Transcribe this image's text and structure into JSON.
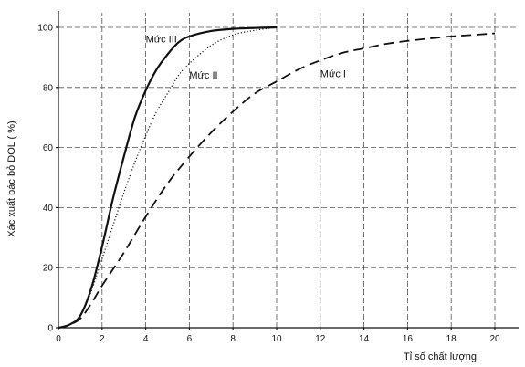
{
  "chart_data": {
    "type": "line",
    "title": "",
    "xlabel": "Tỉ số chất lượng",
    "ylabel": "Xác xuất bác bỏ DOL ( %)",
    "xlim": [
      0,
      20
    ],
    "ylim": [
      0,
      100
    ],
    "x_ticks": [
      0,
      2,
      4,
      6,
      8,
      10,
      12,
      14,
      16,
      18,
      20
    ],
    "y_ticks": [
      0,
      20,
      40,
      60,
      80,
      100
    ],
    "grid": true,
    "legend": "none",
    "series": [
      {
        "name": "Mức III",
        "style": "solid",
        "points": [
          [
            0,
            0
          ],
          [
            0.5,
            1
          ],
          [
            1,
            4
          ],
          [
            1.5,
            13
          ],
          [
            2,
            27
          ],
          [
            2.5,
            43
          ],
          [
            3,
            57
          ],
          [
            3.5,
            70
          ],
          [
            4,
            79
          ],
          [
            4.5,
            86
          ],
          [
            5,
            91
          ],
          [
            5.5,
            95
          ],
          [
            6,
            97
          ],
          [
            7,
            98.8
          ],
          [
            8,
            99.5
          ],
          [
            9,
            99.8
          ],
          [
            10,
            100
          ]
        ]
      },
      {
        "name": "Mức II",
        "style": "dotted",
        "points": [
          [
            0,
            0
          ],
          [
            0.5,
            1
          ],
          [
            1,
            4
          ],
          [
            1.5,
            12
          ],
          [
            2,
            23
          ],
          [
            2.5,
            34
          ],
          [
            3,
            45
          ],
          [
            3.5,
            55
          ],
          [
            4,
            64
          ],
          [
            4.5,
            72
          ],
          [
            5,
            78
          ],
          [
            5.5,
            84
          ],
          [
            6,
            88
          ],
          [
            7,
            94
          ],
          [
            8,
            97.5
          ],
          [
            9,
            99
          ],
          [
            10,
            100
          ]
        ]
      },
      {
        "name": "Mức I",
        "style": "dashed",
        "points": [
          [
            0,
            0
          ],
          [
            0.5,
            1
          ],
          [
            1,
            3
          ],
          [
            1.5,
            8
          ],
          [
            2,
            14
          ],
          [
            3,
            25
          ],
          [
            4,
            37
          ],
          [
            5,
            48
          ],
          [
            6,
            57
          ],
          [
            7,
            65
          ],
          [
            8,
            72
          ],
          [
            9,
            78
          ],
          [
            10,
            82
          ],
          [
            11,
            86
          ],
          [
            12,
            89
          ],
          [
            13,
            91.5
          ],
          [
            14,
            93
          ],
          [
            15,
            94.5
          ],
          [
            16,
            95.5
          ],
          [
            17,
            96.3
          ],
          [
            18,
            97
          ],
          [
            19,
            97.5
          ],
          [
            20,
            98
          ]
        ]
      }
    ],
    "series_label_positions": {
      "Mức III": [
        4.0,
        95.0
      ],
      "Mức II": [
        6.0,
        83.0
      ],
      "Mức I": [
        12.0,
        83.5
      ]
    }
  }
}
